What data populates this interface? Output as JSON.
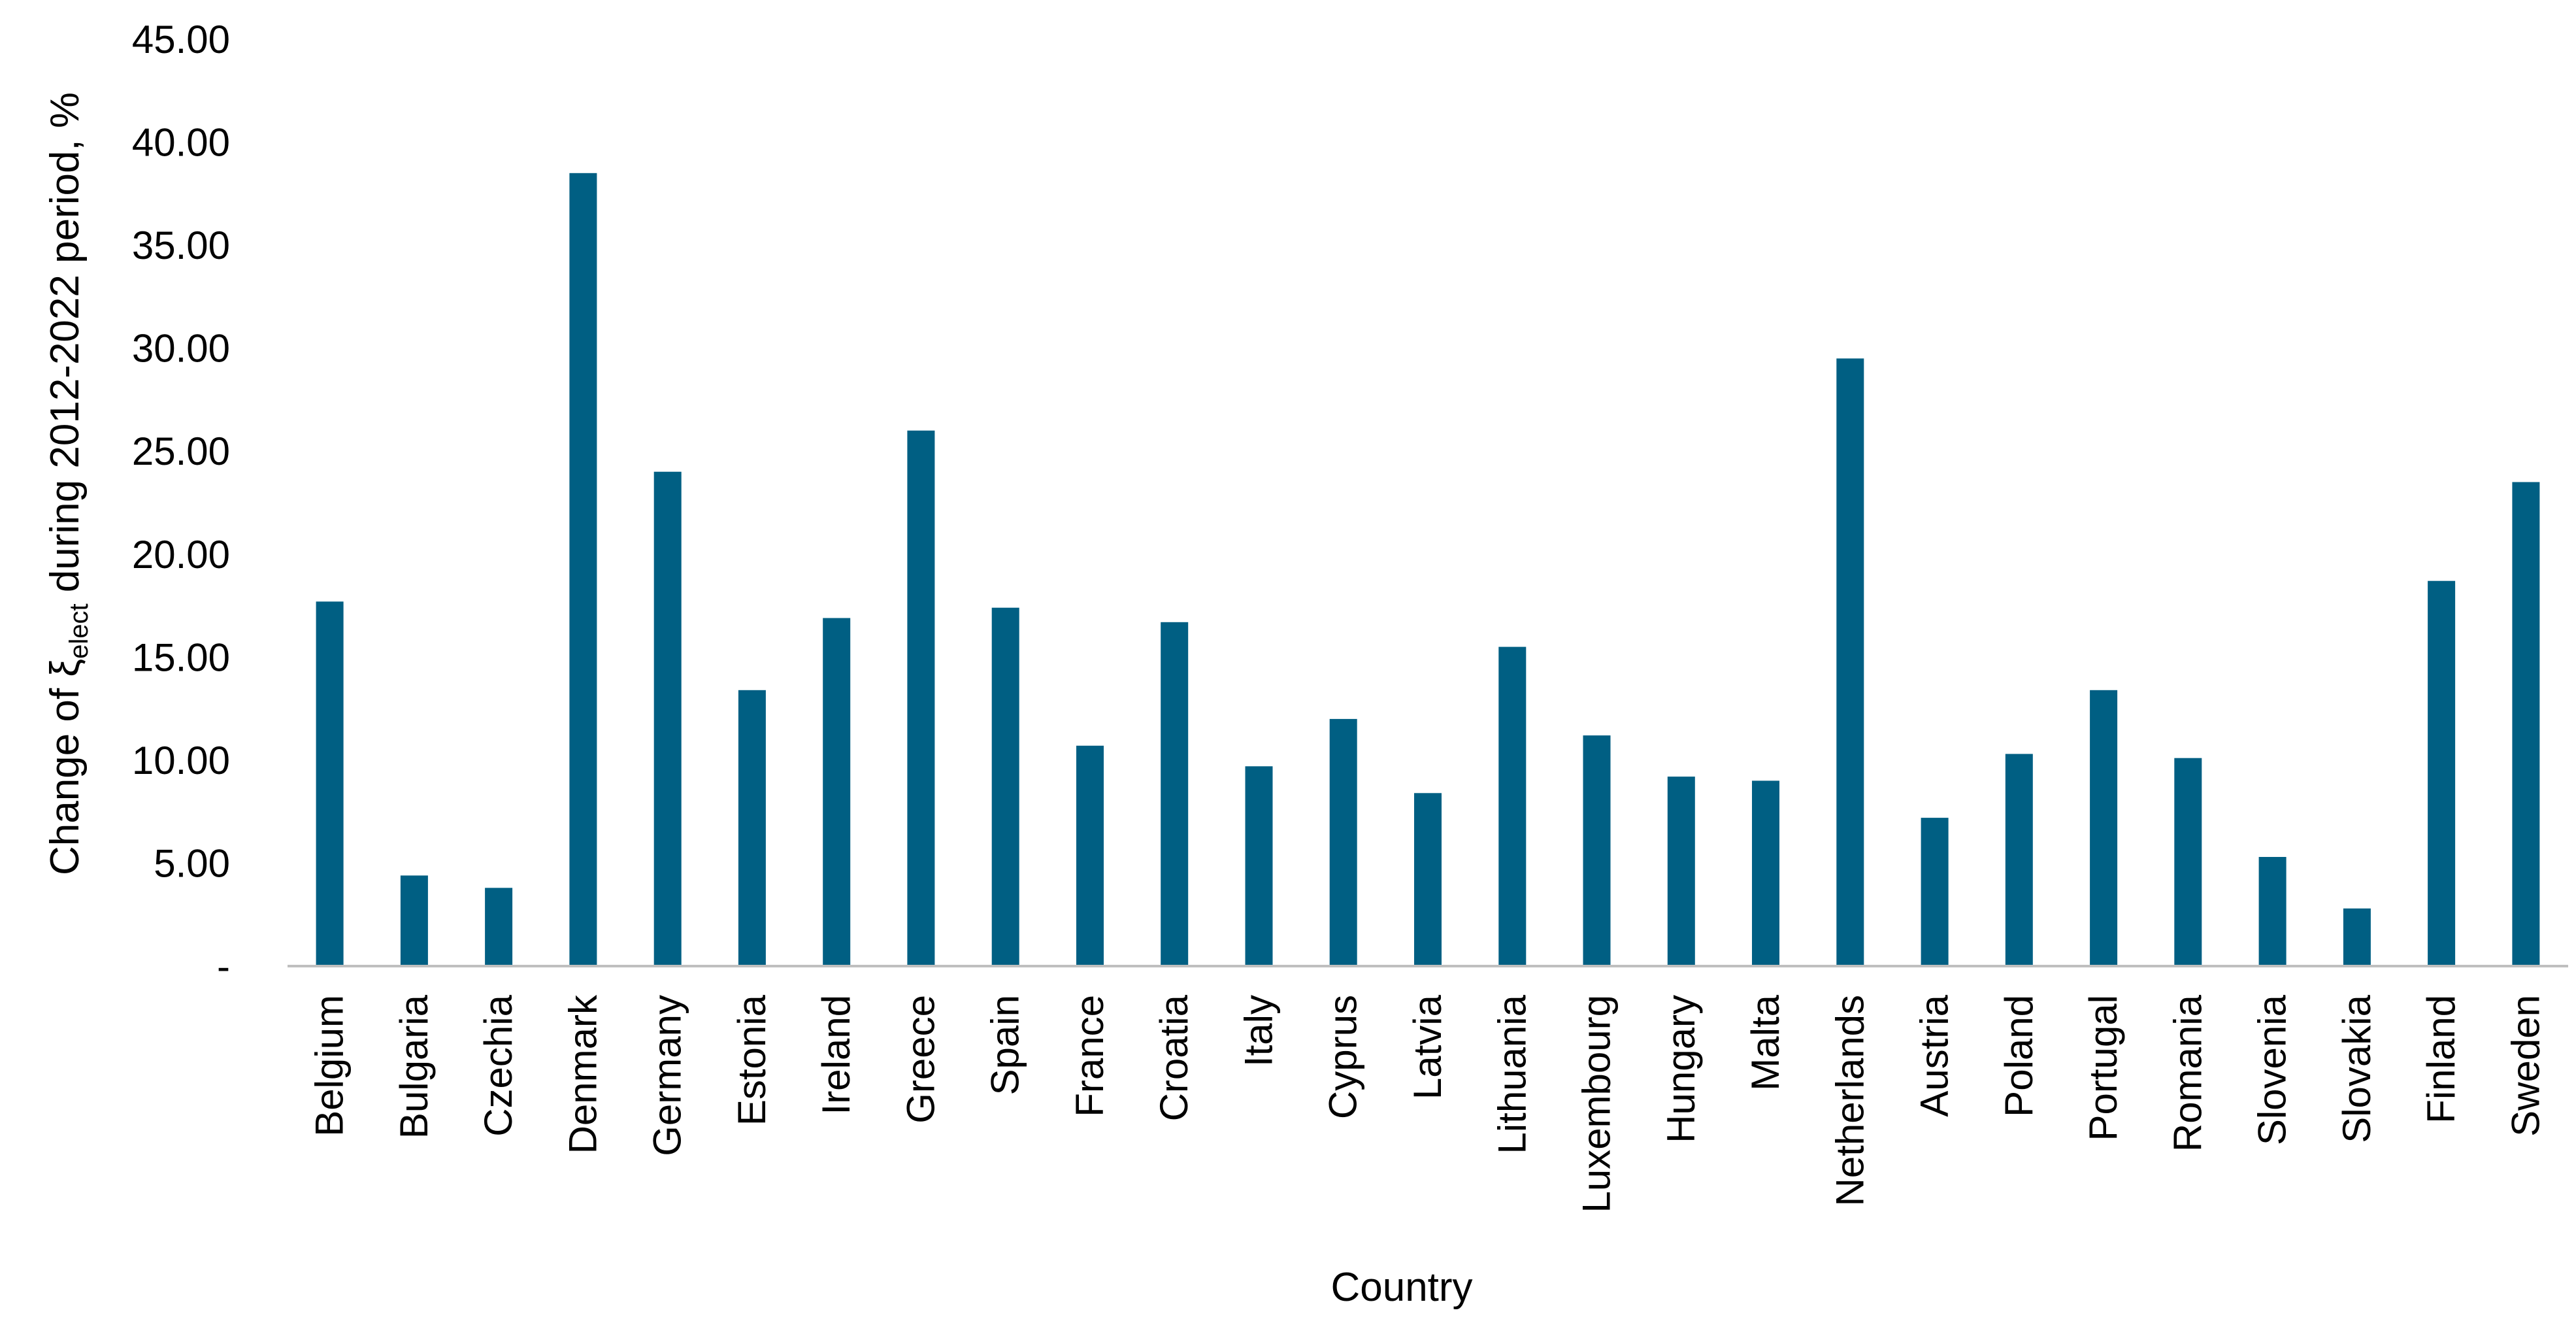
{
  "chart_data": {
    "type": "bar",
    "title": "",
    "xlabel": "Country",
    "ylabel": {
      "prefix": "Change of ",
      "symbol": "ξ",
      "subscript": "elect",
      "suffix": " during 2012-2022 period, %"
    },
    "ylim": [
      0,
      45
    ],
    "yticks": [
      0,
      5,
      10,
      15,
      20,
      25,
      30,
      35,
      40,
      45
    ],
    "ytick_labels": [
      "-",
      "5.00",
      "10.00",
      "15.00",
      "20.00",
      "25.00",
      "30.00",
      "35.00",
      "40.00",
      "45.00"
    ],
    "grid": false,
    "legend": "none",
    "bar_color": "#005f83",
    "axis_color": "#bfbfbf",
    "categories": [
      "Belgium",
      "Bulgaria",
      "Czechia",
      "Denmark",
      "Germany",
      "Estonia",
      "Ireland",
      "Greece",
      "Spain",
      "France",
      "Croatia",
      "Italy",
      "Cyprus",
      "Latvia",
      "Lithuania",
      "Luxembourg",
      "Hungary",
      "Malta",
      "Netherlands",
      "Austria",
      "Poland",
      "Portugal",
      "Romania",
      "Slovenia",
      "Slovakia",
      "Finland",
      "Sweden"
    ],
    "values": [
      17.7,
      4.4,
      3.8,
      38.5,
      24.0,
      13.4,
      16.9,
      26.0,
      17.4,
      10.7,
      16.7,
      9.7,
      12.0,
      8.4,
      15.5,
      11.2,
      9.2,
      9.0,
      29.5,
      7.2,
      10.3,
      13.4,
      10.1,
      5.3,
      2.8,
      18.7,
      23.5
    ]
  }
}
